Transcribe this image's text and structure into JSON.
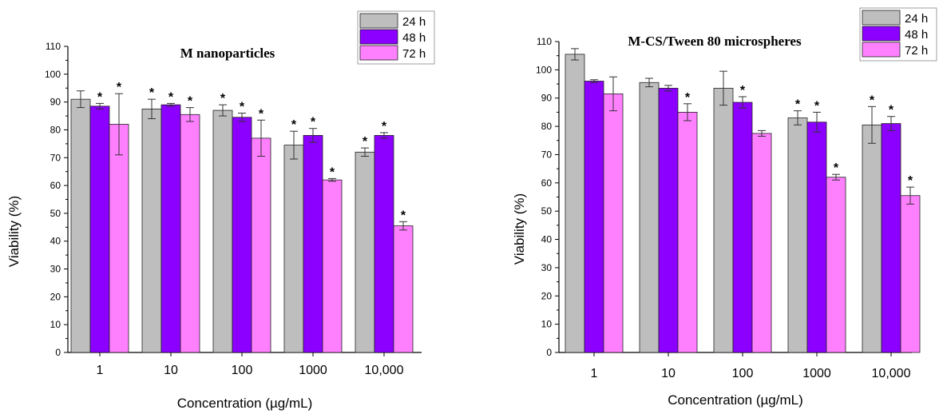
{
  "chart_data": [
    {
      "type": "bar",
      "title": "M nanoparticles",
      "xlabel": "Concentration (µg/mL)",
      "ylabel": "Viability (%)",
      "ylim": [
        0,
        110
      ],
      "yticks": [
        0,
        10,
        20,
        30,
        40,
        50,
        60,
        70,
        80,
        90,
        100,
        110
      ],
      "categories": [
        "1",
        "10",
        "100",
        "1000",
        "10,000"
      ],
      "legend_position": "top-right",
      "series": [
        {
          "name": "24 h",
          "color": "#bebebe",
          "values": [
            91,
            87.5,
            87,
            74.5,
            72
          ],
          "errors": [
            3,
            3.5,
            2,
            5,
            1.5
          ],
          "significant": [
            false,
            true,
            true,
            true,
            true
          ]
        },
        {
          "name": "48 h",
          "color": "#8b00ff",
          "values": [
            88.5,
            89,
            84.5,
            78,
            78
          ],
          "errors": [
            1,
            0.5,
            1.5,
            2.5,
            1
          ],
          "significant": [
            true,
            true,
            true,
            true,
            true
          ]
        },
        {
          "name": "72 h",
          "color": "#ff80ff",
          "values": [
            82,
            85.5,
            77,
            62,
            45.5
          ],
          "errors": [
            11,
            2.5,
            6.5,
            0.5,
            1.5
          ],
          "significant": [
            true,
            true,
            true,
            true,
            true
          ]
        }
      ],
      "significance_marker": "*"
    },
    {
      "type": "bar",
      "title": "M-CS/Tween 80 microspheres",
      "xlabel": "Concentration (µg/mL)",
      "ylabel": "Viability (%)",
      "ylim": [
        0,
        110
      ],
      "yticks": [
        0,
        10,
        20,
        30,
        40,
        50,
        60,
        70,
        80,
        90,
        100,
        110
      ],
      "categories": [
        "1",
        "10",
        "100",
        "1000",
        "10,000"
      ],
      "legend_position": "top-right",
      "series": [
        {
          "name": "24 h",
          "color": "#bebebe",
          "values": [
            105.5,
            95.5,
            93.5,
            83,
            80.5
          ],
          "errors": [
            2,
            1.5,
            6,
            2.5,
            6.5
          ],
          "significant": [
            false,
            false,
            false,
            true,
            true
          ]
        },
        {
          "name": "48 h",
          "color": "#8b00ff",
          "values": [
            96,
            93.5,
            88.5,
            81.5,
            81
          ],
          "errors": [
            0.5,
            1,
            2,
            3.5,
            2.5
          ],
          "significant": [
            false,
            false,
            true,
            true,
            true
          ]
        },
        {
          "name": "72 h",
          "color": "#ff80ff",
          "values": [
            91.5,
            85,
            77.5,
            62,
            55.5
          ],
          "errors": [
            6,
            3,
            1,
            1,
            3
          ],
          "significant": [
            false,
            true,
            false,
            true,
            true
          ]
        }
      ],
      "significance_marker": "*"
    }
  ]
}
